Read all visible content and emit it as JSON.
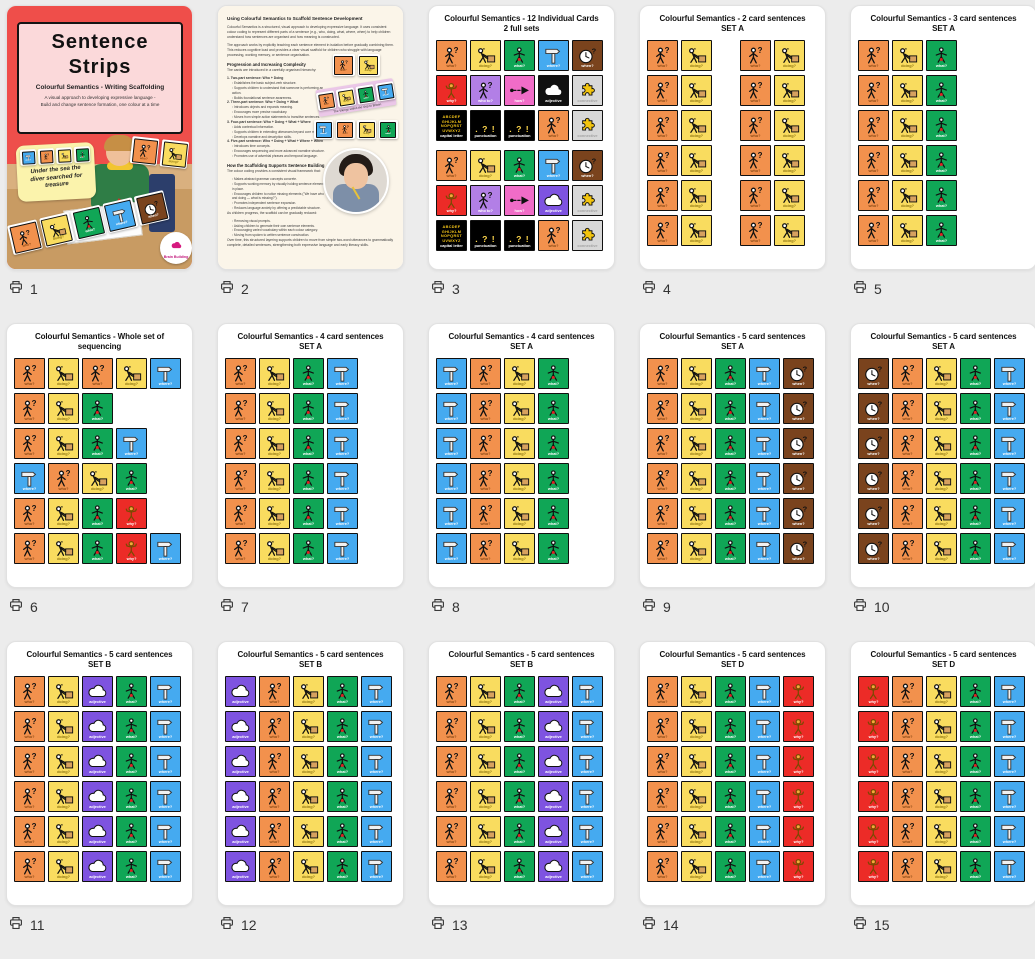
{
  "footer": {
    "icon": "printer-icon"
  },
  "cards": {
    "who": {
      "label": "who?",
      "color": "#F2914D",
      "label_color": "#8B4A16",
      "icon": "person-question"
    },
    "doing": {
      "label": "doing?",
      "color": "#F9DC5F",
      "label_color": "#8F7612",
      "icon": "person-pushing-box"
    },
    "what": {
      "label": "what?",
      "color": "#10A656",
      "label_color": "#FFFFFF",
      "icon": "person-arms-out"
    },
    "where": {
      "label": "where?",
      "color": "#45AAF0",
      "label_color": "#FFFFFF",
      "icon": "signpost"
    },
    "when": {
      "label": "when?",
      "color": "#7A431D",
      "label_color": "#FFFFFF",
      "icon": "clock-question"
    },
    "why": {
      "label": "why?",
      "color": "#EC2B27",
      "label_color": "#FFFFFF",
      "icon": "person-shrugging"
    },
    "adjective": {
      "label": "adjective",
      "color": "#7E53E0",
      "label_color": "#FFFFFF",
      "icon": "cloud"
    },
    "adjectiveDark": {
      "label": "adjective",
      "color": "#111111",
      "label_color": "#FFFFFF",
      "icon": "cloud"
    },
    "whoTo": {
      "label": "who to?",
      "color": "#B27FE6",
      "label_color": "#FFFFFF",
      "icon": "person-question"
    },
    "how": {
      "label": "how?",
      "color": "#F06CC7",
      "label_color": "#FFFFFF",
      "icon": "dashed-arrow"
    },
    "connective": {
      "label": "connective",
      "color": "#D8D8D8",
      "label_color": "#A3A3A3",
      "icon": "puzzle-piece"
    },
    "capital": {
      "label": "capital letter",
      "color": "#000000",
      "label_color": "#FFFFFF",
      "icon": "alphabet",
      "alphabet": [
        "ABCDEF",
        "GHIJKLM",
        "NOPQRST",
        "UVWXYZ"
      ]
    },
    "punctuation": {
      "label": "punctuation",
      "color": "#000000",
      "label_color": "#FFFFFF",
      "icon": "punctuation-marks",
      "marks": ". ? !"
    }
  },
  "pages": [
    {
      "number": "1",
      "kind": "cover",
      "cover": {
        "title_line1": "Sentence",
        "title_line2": "Strips",
        "subtitle": "Colourful Semantics  -  Writing Scaffolding",
        "tagline_line1": "A visual approach to developing expressive language -",
        "tagline_line2": "Build and change sentence formation, one colour at a time",
        "sticky_note_line1": "Under the sea the",
        "sticky_note_line2": "diver searched for",
        "sticky_note_line3": "treasure",
        "sticky_cards": [
          "where",
          "who",
          "doing",
          "what"
        ],
        "corner_cards": [
          "who",
          "doing"
        ],
        "strip_cards": [
          "who",
          "doing",
          "what",
          "where",
          "when"
        ],
        "logo_text": "Brain Building"
      }
    },
    {
      "number": "2",
      "kind": "document",
      "document": {
        "lines": [
          {
            "k": "h1",
            "t": "Using Colourful Semantics to Scaffold Sentence Development"
          },
          {
            "k": "p",
            "t": "Colourful Semantics is a structured, visual approach to developing expressive language. It uses consistent colour coding to represent different parts of a sentence (e.g., who, doing, what, where, when) to help children understand how sentences are organised and how meaning is constructed."
          },
          {
            "k": "p",
            "t": "The approach works by explicitly teaching each sentence element in isolation before gradually combining them. This reduces cognitive load and provides a clear visual scaffold for children who struggle with language processing, working memory, or sentence organisation."
          }
        ],
        "narrow_lines": [
          {
            "k": "h2",
            "t": "Progression and Increasing Complexity"
          },
          {
            "k": "p",
            "t": "The cards are introduced in a carefully organised hierarchy:"
          },
          {
            "k": "n",
            "t": "1. Two-part sentence: Who + Doing"
          },
          {
            "k": "b",
            "t": "Establishes the basic subject-verb structure."
          },
          {
            "k": "b",
            "t": "Supports children to understand that someone is performing an action."
          },
          {
            "k": "b",
            "t": "Builds foundational sentence awareness."
          },
          {
            "k": "n",
            "t": "2. Three-part sentence: Who + Doing + What"
          },
          {
            "k": "b",
            "t": "Introduces objects and expands meaning."
          },
          {
            "k": "b",
            "t": "Encourages more precise vocabulary."
          },
          {
            "k": "b",
            "t": "Moves from simple action statements to transitive sentences."
          },
          {
            "k": "n",
            "t": "3. Four-part sentence: Who + Doing + What + Where"
          },
          {
            "k": "b",
            "t": "Adds contextual information."
          },
          {
            "k": "b",
            "t": "Supports children in extending utterances beyond core meaning."
          },
          {
            "k": "b",
            "t": "Develops narrative and description skills."
          },
          {
            "k": "n",
            "t": "4. Five-part sentence: Who + Doing + What + Where + When"
          },
          {
            "k": "b",
            "t": "Introduces time concepts."
          },
          {
            "k": "b",
            "t": "Encourages sequencing and more advanced narrative structure."
          },
          {
            "k": "b",
            "t": "Promotes use of adverbial phrases and temporal language."
          },
          {
            "k": "h2",
            "t": "How the Scaffolding Supports Sentence Building"
          },
          {
            "k": "p",
            "t": "The colour coding provides a consistent visual framework that:"
          },
          {
            "k": "b",
            "t": "Makes abstract grammar concepts concrete."
          },
          {
            "k": "b",
            "t": "Supports working memory by visually holding sentence elements in place."
          },
          {
            "k": "b",
            "t": "Encourages children to notice missing elements (\"We have who and doing — what is missing?\")."
          },
          {
            "k": "b",
            "t": "Promotes independent sentence expansion."
          },
          {
            "k": "b",
            "t": "Reduces language anxiety by offering a predictable structure."
          },
          {
            "k": "p",
            "t": "As children progress, the scaffold can be gradually reduced:"
          },
          {
            "k": "b",
            "t": "Removing visual prompts."
          },
          {
            "k": "b",
            "t": "Asking children to generate their own sentence elements."
          },
          {
            "k": "b",
            "t": "Encouraging varied vocabulary within each colour category."
          },
          {
            "k": "b",
            "t": "Moving from spoken to written sentence construction."
          }
        ],
        "closing_lines": [
          {
            "k": "p",
            "t": "Over time, this structured layering supports children to move from simple two-word utterances to grammatically complete, detailed sentences, strengthening both expressive language and early literacy skills."
          }
        ],
        "images": {
          "pair_cards": [
            "who",
            "doing"
          ],
          "strip_cards": [
            "who",
            "doing",
            "what",
            "where"
          ],
          "strip_caption": "The Vikings sailed the ship to Britain.",
          "row_cards": [
            "where",
            "who",
            "doing",
            "what"
          ]
        }
      }
    },
    {
      "number": "3",
      "kind": "cards",
      "title": "Colourful Semantics - 12 Individual Cards",
      "subtitle": "2 full sets",
      "sets": [
        [
          [
            "who",
            "doing",
            "what",
            "where",
            "when"
          ],
          [
            "why",
            "whoTo",
            "how",
            "adjectiveDark",
            "connective"
          ],
          [
            "capital",
            "punctuation",
            "punctuation",
            "who",
            "connective"
          ]
        ],
        [
          [
            "who",
            "doing",
            "what",
            "where",
            "when"
          ],
          [
            "why",
            "whoTo",
            "how",
            "adjective",
            "connective"
          ],
          [
            "capital",
            "punctuation",
            "punctuation",
            "who",
            "connective"
          ]
        ]
      ]
    },
    {
      "number": "4",
      "kind": "cards",
      "title": "Colourful Semantics - 2 card sentences",
      "subtitle": "SET A",
      "sets": [
        [
          [
            "who",
            "doing",
            "spacer",
            "who",
            "doing"
          ],
          [
            "who",
            "doing",
            "spacer",
            "who",
            "doing"
          ],
          [
            "who",
            "doing",
            "spacer",
            "who",
            "doing"
          ],
          [
            "who",
            "doing",
            "spacer",
            "who",
            "doing"
          ],
          [
            "who",
            "doing",
            "spacer",
            "who",
            "doing"
          ],
          [
            "who",
            "doing",
            "spacer",
            "who",
            "doing"
          ]
        ]
      ]
    },
    {
      "number": "5",
      "kind": "cards",
      "title": "Colourful Semantics - 3 card sentences",
      "subtitle": "SET A",
      "sets": [
        [
          [
            "who",
            "doing",
            "what"
          ],
          [
            "who",
            "doing",
            "what"
          ],
          [
            "who",
            "doing",
            "what"
          ],
          [
            "who",
            "doing",
            "what"
          ],
          [
            "who",
            "doing",
            "what"
          ],
          [
            "who",
            "doing",
            "what"
          ]
        ]
      ]
    },
    {
      "number": "6",
      "kind": "cards",
      "title": "Colourful Semantics - Whole set of sequencing",
      "subtitle": "",
      "sets": [
        [
          [
            "who",
            "doing",
            "who",
            "doing",
            "where"
          ],
          [
            "who",
            "doing",
            "what"
          ],
          [
            "who",
            "doing",
            "what",
            "where"
          ],
          [
            "where",
            "who",
            "doing",
            "what"
          ],
          [
            "who",
            "doing",
            "what",
            "why"
          ],
          [
            "who",
            "doing",
            "what",
            "why",
            "where"
          ]
        ]
      ]
    },
    {
      "number": "7",
      "kind": "cards",
      "title": "Colourful Semantics - 4 card sentences",
      "subtitle": "SET A",
      "sets": [
        [
          [
            "who",
            "doing",
            "what",
            "where"
          ],
          [
            "who",
            "doing",
            "what",
            "where"
          ],
          [
            "who",
            "doing",
            "what",
            "where"
          ],
          [
            "who",
            "doing",
            "what",
            "where"
          ],
          [
            "who",
            "doing",
            "what",
            "where"
          ],
          [
            "who",
            "doing",
            "what",
            "where"
          ]
        ]
      ]
    },
    {
      "number": "8",
      "kind": "cards",
      "title": "Colourful Semantics - 4 card sentences",
      "subtitle": "SET A",
      "sets": [
        [
          [
            "where",
            "who",
            "doing",
            "what"
          ],
          [
            "where",
            "who",
            "doing",
            "what"
          ],
          [
            "where",
            "who",
            "doing",
            "what"
          ],
          [
            "where",
            "who",
            "doing",
            "what"
          ],
          [
            "where",
            "who",
            "doing",
            "what"
          ],
          [
            "where",
            "who",
            "doing",
            "what"
          ]
        ]
      ]
    },
    {
      "number": "9",
      "kind": "cards",
      "title": "Colourful Semantics - 5 card sentences",
      "subtitle": "SET A",
      "sets": [
        [
          [
            "who",
            "doing",
            "what",
            "where",
            "when"
          ],
          [
            "who",
            "doing",
            "what",
            "where",
            "when"
          ],
          [
            "who",
            "doing",
            "what",
            "where",
            "when"
          ],
          [
            "who",
            "doing",
            "what",
            "where",
            "when"
          ],
          [
            "who",
            "doing",
            "what",
            "where",
            "when"
          ],
          [
            "who",
            "doing",
            "what",
            "where",
            "when"
          ]
        ]
      ]
    },
    {
      "number": "10",
      "kind": "cards",
      "title": "Colourful Semantics - 5 card sentences",
      "subtitle": "SET A",
      "sets": [
        [
          [
            "when",
            "who",
            "doing",
            "what",
            "where"
          ],
          [
            "when",
            "who",
            "doing",
            "what",
            "where"
          ],
          [
            "when",
            "who",
            "doing",
            "what",
            "where"
          ],
          [
            "when",
            "who",
            "doing",
            "what",
            "where"
          ],
          [
            "when",
            "who",
            "doing",
            "what",
            "where"
          ],
          [
            "when",
            "who",
            "doing",
            "what",
            "where"
          ]
        ]
      ]
    },
    {
      "number": "11",
      "kind": "cards",
      "title": "Colourful Semantics - 5 card sentences",
      "subtitle": "SET B",
      "sets": [
        [
          [
            "who",
            "doing",
            "adjective",
            "what",
            "where"
          ],
          [
            "who",
            "doing",
            "adjective",
            "what",
            "where"
          ],
          [
            "who",
            "doing",
            "adjective",
            "what",
            "where"
          ],
          [
            "who",
            "doing",
            "adjective",
            "what",
            "where"
          ],
          [
            "who",
            "doing",
            "adjective",
            "what",
            "where"
          ],
          [
            "who",
            "doing",
            "adjective",
            "what",
            "where"
          ]
        ]
      ]
    },
    {
      "number": "12",
      "kind": "cards",
      "title": "Colourful Semantics - 5 card sentences",
      "subtitle": "SET B",
      "sets": [
        [
          [
            "adjective",
            "who",
            "doing",
            "what",
            "where"
          ],
          [
            "adjective",
            "who",
            "doing",
            "what",
            "where"
          ],
          [
            "adjective",
            "who",
            "doing",
            "what",
            "where"
          ],
          [
            "adjective",
            "who",
            "doing",
            "what",
            "where"
          ],
          [
            "adjective",
            "who",
            "doing",
            "what",
            "where"
          ],
          [
            "adjective",
            "who",
            "doing",
            "what",
            "where"
          ]
        ]
      ]
    },
    {
      "number": "13",
      "kind": "cards",
      "title": "Colourful Semantics - 5 card sentences",
      "subtitle": "SET B",
      "sets": [
        [
          [
            "who",
            "doing",
            "what",
            "adjective",
            "where"
          ],
          [
            "who",
            "doing",
            "what",
            "adjective",
            "where"
          ],
          [
            "who",
            "doing",
            "what",
            "adjective",
            "where"
          ],
          [
            "who",
            "doing",
            "what",
            "adjective",
            "where"
          ],
          [
            "who",
            "doing",
            "what",
            "adjective",
            "where"
          ],
          [
            "who",
            "doing",
            "what",
            "adjective",
            "where"
          ]
        ]
      ]
    },
    {
      "number": "14",
      "kind": "cards",
      "title": "Colourful Semantics - 5 card sentences",
      "subtitle": "SET D",
      "sets": [
        [
          [
            "who",
            "doing",
            "what",
            "where",
            "why"
          ],
          [
            "who",
            "doing",
            "what",
            "where",
            "why"
          ],
          [
            "who",
            "doing",
            "what",
            "where",
            "why"
          ],
          [
            "who",
            "doing",
            "what",
            "where",
            "why"
          ],
          [
            "who",
            "doing",
            "what",
            "where",
            "why"
          ],
          [
            "who",
            "doing",
            "what",
            "where",
            "why"
          ]
        ]
      ]
    },
    {
      "number": "15",
      "kind": "cards",
      "title": "Colourful Semantics - 5 card sentences",
      "subtitle": "SET D",
      "sets": [
        [
          [
            "why",
            "who",
            "doing",
            "what",
            "where"
          ],
          [
            "why",
            "who",
            "doing",
            "what",
            "where"
          ],
          [
            "why",
            "who",
            "doing",
            "what",
            "where"
          ],
          [
            "why",
            "who",
            "doing",
            "what",
            "where"
          ],
          [
            "why",
            "who",
            "doing",
            "what",
            "where"
          ],
          [
            "why",
            "who",
            "doing",
            "what",
            "where"
          ]
        ]
      ]
    }
  ]
}
